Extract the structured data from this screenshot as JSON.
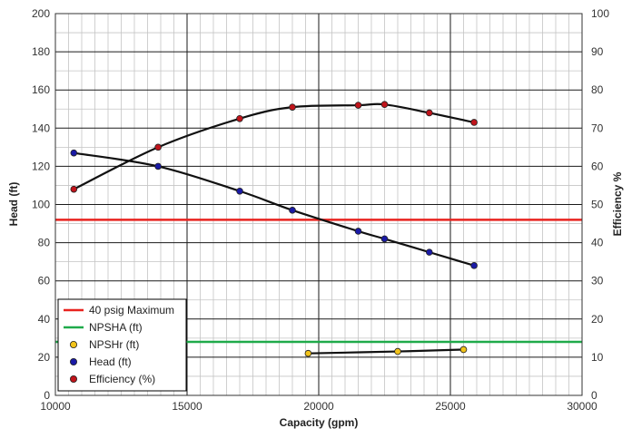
{
  "chart_data": {
    "type": "line",
    "xlabel": "Capacity (gpm)",
    "ylabel": "Head (ft)",
    "y2label": "Efficiency %",
    "xlim": [
      10000,
      30000
    ],
    "ylim": [
      0,
      200
    ],
    "y2lim": [
      0,
      100
    ],
    "x_ticks": [
      10000,
      15000,
      20000,
      25000,
      30000
    ],
    "y_ticks": [
      0,
      20,
      40,
      60,
      80,
      100,
      120,
      140,
      160,
      180,
      200
    ],
    "y2_ticks": [
      0,
      10,
      20,
      30,
      40,
      50,
      60,
      70,
      80,
      90,
      100
    ],
    "grid": true,
    "legend_position": "bottom-left",
    "series": [
      {
        "name": "40 psig Maximum",
        "kind": "hline",
        "axis": "left",
        "color": "#e8231f",
        "y": 92
      },
      {
        "name": "NPSHA (ft)",
        "kind": "hline",
        "axis": "left",
        "color": "#1faa4a",
        "y": 28
      },
      {
        "name": "NPSHr (ft)",
        "kind": "points",
        "axis": "left",
        "color": "#f2c31a",
        "x": [
          19600,
          23000,
          25500
        ],
        "y": [
          22,
          23,
          24
        ]
      },
      {
        "name": "Head (ft)",
        "kind": "points",
        "axis": "left",
        "color": "#1a1aa6",
        "x": [
          10700,
          13900,
          17000,
          19000,
          21500,
          22500,
          24200,
          25900
        ],
        "y": [
          127,
          120,
          107,
          97,
          86,
          82,
          75,
          68
        ]
      },
      {
        "name": "Efficiency (%)",
        "kind": "points",
        "axis": "right",
        "color": "#c0141b",
        "x": [
          10700,
          13900,
          17000,
          19000,
          21500,
          22500,
          24200,
          25900
        ],
        "y": [
          54,
          65,
          72.5,
          75.5,
          76,
          76.2,
          74,
          71.5
        ]
      }
    ]
  }
}
